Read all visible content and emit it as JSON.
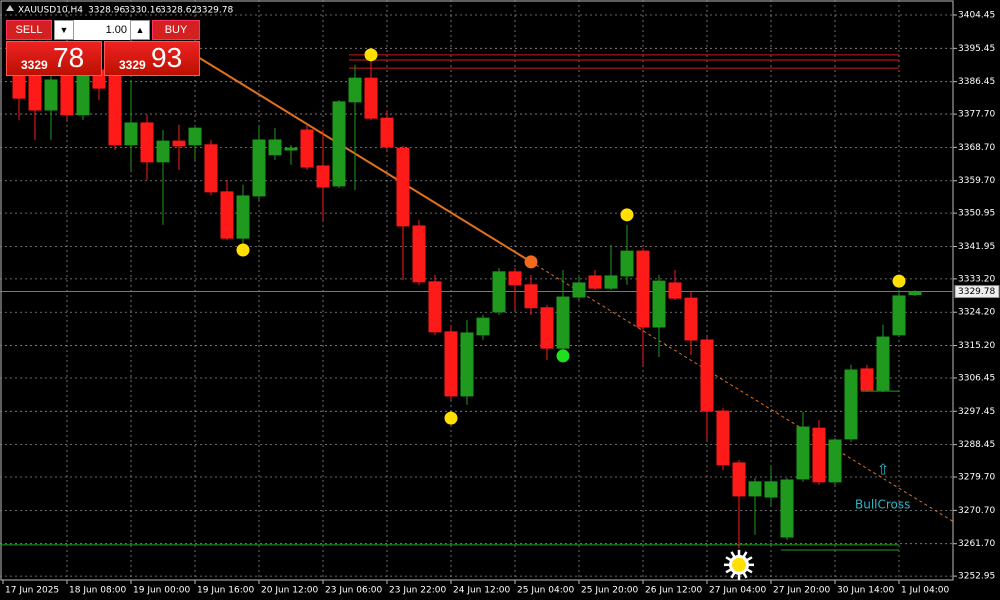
{
  "header": {
    "symbol": "XAUUSD10,H4",
    "ohlc": [
      "3328.96",
      "3330.16",
      "3328.62",
      "3329.78"
    ]
  },
  "trade_panel": {
    "sell": "SELL",
    "buy": "BUY",
    "lots": "1.00",
    "bid_big": "3329",
    "bid_small": "78",
    "ask_big": "3329",
    "ask_small": "93"
  },
  "chart_data": {
    "type": "candlestick",
    "categories": [
      "17 Jun 2025",
      null,
      null,
      null,
      "18 Jun 08:00",
      null,
      null,
      null,
      "19 Jun 00:00",
      null,
      null,
      null,
      "19 Jun 16:00",
      null,
      null,
      null,
      "20 Jun 12:00",
      null,
      null,
      null,
      "23 Jun 06:00",
      null,
      null,
      null,
      "23 Jun 22:00",
      null,
      null,
      null,
      "24 Jun 12:00",
      null,
      null,
      null,
      "25 Jun 04:00",
      null,
      null,
      null,
      "25 Jun 20:00",
      null,
      null,
      null,
      "26 Jun 12:00",
      null,
      null,
      null,
      "27 Jun 04:00",
      null,
      null,
      null,
      "27 Jun 20:00",
      null,
      null,
      null,
      "30 Jun 14:00",
      null,
      null,
      null,
      "1 Jul 04:00",
      null
    ],
    "open": [
      null,
      3389.6,
      3388.3,
      3378.8,
      3388.3,
      3377.5,
      3389.6,
      3392.3,
      3369.4,
      3375.3,
      3364.8,
      3370.4,
      3369.4,
      3369.4,
      3356.7,
      3344.2,
      3355.6,
      3366.7,
      3368.0,
      3373.4,
      3363.7,
      3358.3,
      3381.0,
      3387.4,
      3376.6,
      3368.5,
      3347.5,
      3332.4,
      3318.9,
      3301.6,
      3318.1,
      3324.3,
      3335.1,
      3331.6,
      3325.4,
      3314.5,
      3328.3,
      3334.0,
      3330.7,
      3334.0,
      3340.7,
      3320.2,
      3332.1,
      3328.0,
      3316.7,
      3297.5,
      3283.5,
      3274.6,
      3274.3,
      3263.5,
      3279.2,
      3292.9,
      3278.4,
      3290.0,
      3308.9,
      3303.2,
      3318.1,
      3328.96
    ],
    "high": [
      null,
      3393.7,
      3392.3,
      3389.6,
      3392.3,
      3393.7,
      3392.3,
      3395.0,
      3386.9,
      3377.5,
      3373.4,
      3374.8,
      3374.8,
      3370.7,
      3359.9,
      3358.6,
      3374.8,
      3373.9,
      3369.4,
      3374.8,
      3373.4,
      3381.5,
      3391.0,
      3392.3,
      3378.8,
      3369.1,
      3349.1,
      3334.3,
      3320.8,
      3322.1,
      3323.5,
      3336.1,
      3336.1,
      3334.3,
      3326.2,
      3335.6,
      3334.3,
      3335.6,
      3342.4,
      3347.8,
      3341.5,
      3334.3,
      3335.6,
      3329.7,
      3317.5,
      3298.3,
      3284.3,
      3279.4,
      3282.9,
      3279.4,
      3297.3,
      3295.1,
      3290.2,
      3310.0,
      3310.0,
      3320.8,
      3330.2,
      3330.16
    ],
    "low": [
      null,
      3376.1,
      3370.7,
      3370.7,
      3376.1,
      3376.1,
      3381.5,
      3368.0,
      3362.6,
      3359.9,
      3347.8,
      3362.6,
      3365.3,
      3355.9,
      3343.7,
      3342.4,
      3354.5,
      3365.3,
      3364.0,
      3362.6,
      3349.1,
      3357.7,
      3357.2,
      3376.1,
      3368.0,
      3332.9,
      3331.6,
      3318.1,
      3300.5,
      3299.2,
      3316.7,
      3323.5,
      3324.8,
      3323.5,
      3311.3,
      3314.0,
      3327.5,
      3330.2,
      3330.2,
      3331.6,
      3310.0,
      3312.1,
      3327.5,
      3312.7,
      3289.7,
      3281.6,
      3260.5,
      3264.1,
      3272.2,
      3262.7,
      3278.4,
      3277.6,
      3277.6,
      3289.2,
      3302.7,
      3302.7,
      3317.5,
      3328.62
    ],
    "close": [
      null,
      3382.0,
      3378.8,
      3386.9,
      3377.5,
      3389.6,
      3384.7,
      3369.4,
      3375.3,
      3364.8,
      3370.4,
      3369.1,
      3373.9,
      3356.7,
      3344.2,
      3355.6,
      3370.7,
      3370.7,
      3368.5,
      3363.4,
      3358.0,
      3381.0,
      3387.4,
      3376.6,
      3368.8,
      3347.5,
      3332.4,
      3318.9,
      3301.6,
      3318.6,
      3322.6,
      3335.1,
      3331.6,
      3325.4,
      3314.5,
      3328.3,
      3332.1,
      3330.7,
      3334.0,
      3340.7,
      3320.2,
      3332.6,
      3328.0,
      3316.7,
      3297.5,
      3283.0,
      3274.6,
      3278.4,
      3278.4,
      3278.9,
      3293.2,
      3278.4,
      3289.7,
      3308.6,
      3303.2,
      3317.5,
      3328.6,
      3329.78
    ],
    "up_color": "#1f9a1f",
    "down_color": "#ff1a1a",
    "ylim": [
      3251.9,
      3408.5
    ],
    "yticks": [
      3404.45,
      3395.45,
      3386.45,
      {
        "value": 3377.7,
        "label": "3377.70"
      },
      {
        "value": 3368.7,
        "label": "3368.70"
      },
      {
        "value": 3359.7,
        "label": "3359.70"
      },
      3350.95,
      3341.95,
      {
        "value": 3333.2,
        "label": "3333.20"
      },
      {
        "value": 3324.2,
        "label": "3324.20"
      },
      {
        "value": 3315.2,
        "label": "3315.20"
      },
      3306.45,
      3297.45,
      3288.45,
      {
        "value": 3279.7,
        "label": "3279.70"
      },
      {
        "value": 3270.7,
        "label": "3270.70"
      },
      {
        "value": 3261.7,
        "label": "3261.70"
      },
      3252.95
    ],
    "grid": true,
    "current_price": 3329.78,
    "hlines": [
      {
        "value": 3393.7,
        "color": "#d01818",
        "start": 22,
        "end": 56
      },
      {
        "value": 3392.3,
        "color": "#d01818",
        "start": 22,
        "end": 56
      },
      {
        "value": 3390.1,
        "color": "#d01818",
        "start": 22,
        "end": 56
      },
      {
        "value": 3261.4,
        "color": "#1f9a1f",
        "start": 0,
        "end": 56
      },
      {
        "value": 3260.0,
        "color": "#1f9a1f",
        "start": 49,
        "end": 56
      },
      {
        "value": 3302.9,
        "color": "#1f9a1f",
        "start": 54,
        "end": 56
      }
    ],
    "trendline": {
      "from": [
        12.3,
        3392.8
      ],
      "to": [
        33,
        3337.8
      ],
      "color": "#e0701c"
    },
    "markers": [
      {
        "index": 23,
        "price": 3393.7,
        "color": "#ffe000"
      },
      {
        "index": 15,
        "price": 3341.0,
        "color": "#ffe000"
      },
      {
        "index": 28,
        "price": 3295.6,
        "color": "#ffe000"
      },
      {
        "index": 39,
        "price": 3350.5,
        "color": "#ffe000"
      },
      {
        "index": 56,
        "price": 3332.6,
        "color": "#ffe000"
      },
      {
        "index": 33,
        "price": 3337.8,
        "color": "#f26a1b"
      },
      {
        "index": 35,
        "price": 3312.4,
        "color": "#1ee01e"
      }
    ],
    "sun": {
      "index": 46,
      "price": 3256.0
    },
    "annotation": {
      "text": "BullCross",
      "arrow": "⇧",
      "index": 53.25,
      "price": 3272.1,
      "arrow_index": 55,
      "arrow_price": 3281.6,
      "color": "#2ab7c8"
    }
  }
}
